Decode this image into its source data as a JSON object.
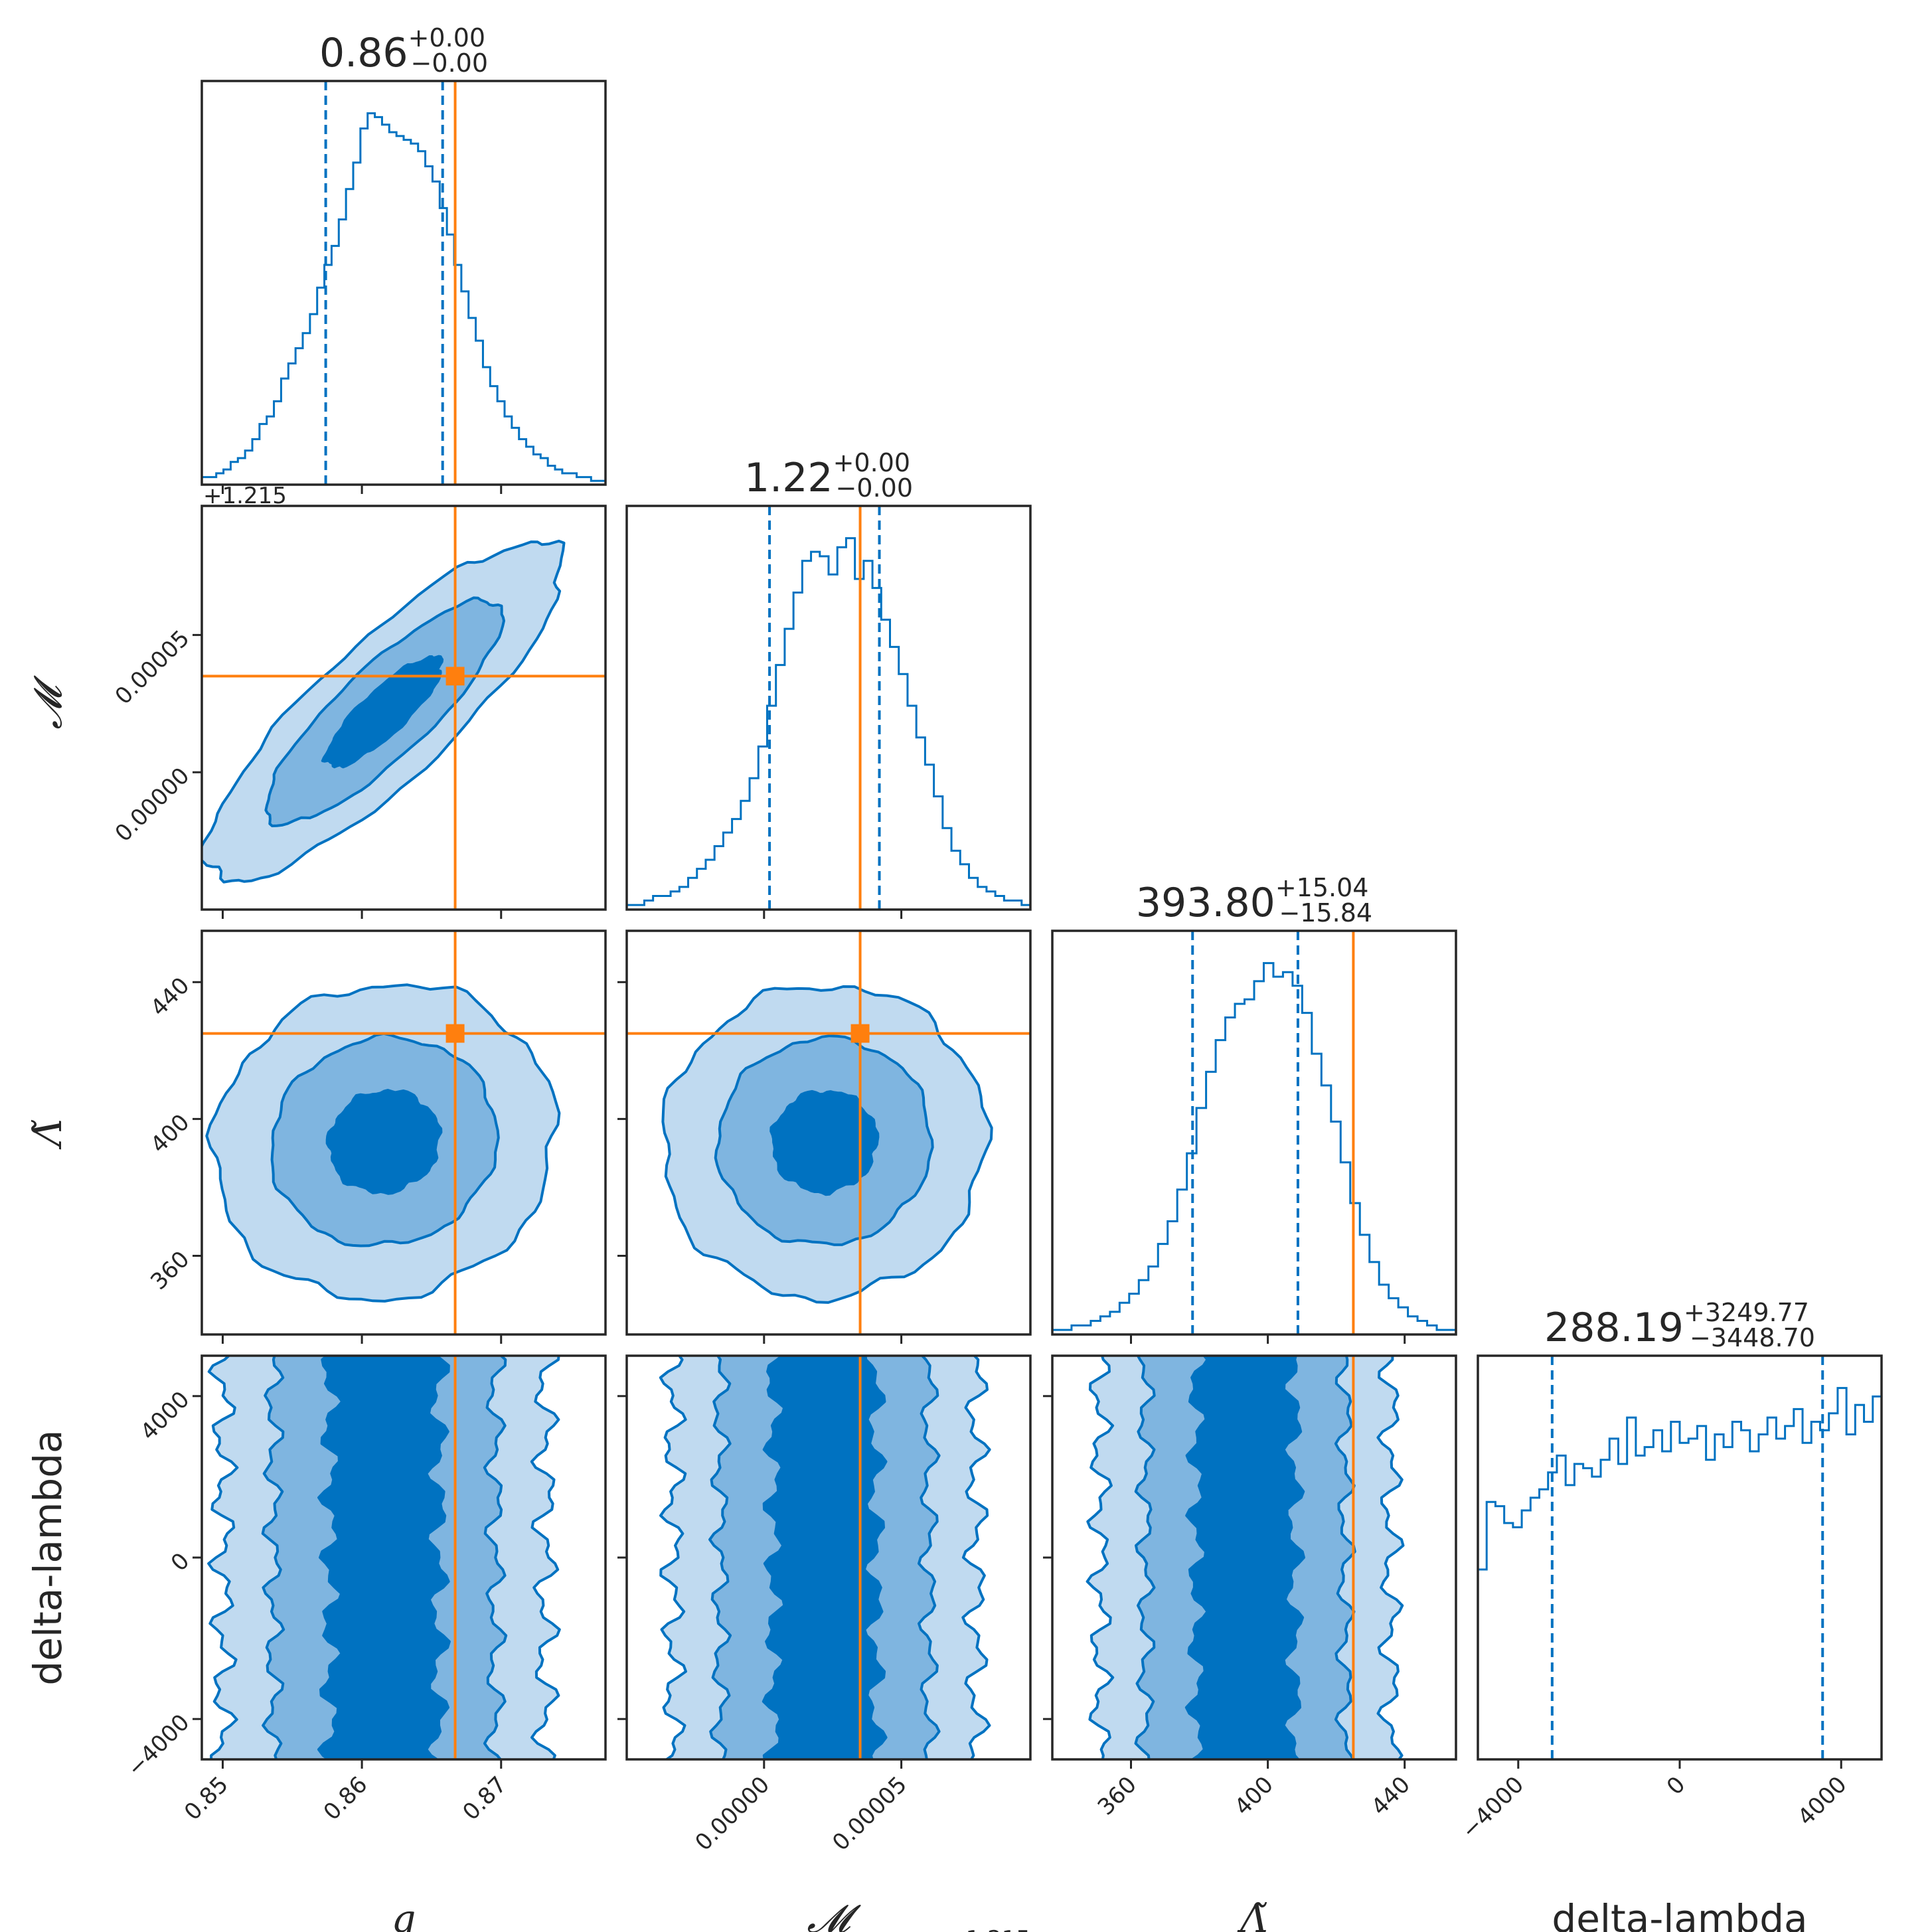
{
  "chart_data": {
    "type": "corner",
    "parameters": [
      {
        "key": "q",
        "label": "q",
        "ticks": [
          "0.85",
          "0.86",
          "0.87"
        ],
        "tick_values": [
          0.85,
          0.86,
          0.87
        ],
        "range": [
          0.8485,
          0.8775
        ],
        "offset": "",
        "title_value": "0.86",
        "title_plus": "+0.00",
        "title_minus": "−0.00",
        "q16": 0.8574,
        "q84": 0.8658,
        "truth": 0.8667
      },
      {
        "key": "mc",
        "label": "𝓜",
        "ticks": [
          "0.00000",
          "0.00005"
        ],
        "tick_values": [
          0.0,
          5e-05
        ],
        "range": [
          -5e-05,
          9.7e-05
        ],
        "offset": "+1.215",
        "title_value": "1.22",
        "title_plus": "+0.00",
        "title_minus": "−0.00",
        "q16": 2e-06,
        "q84": 4.2e-05,
        "truth": 3.5e-05
      },
      {
        "key": "lt",
        "label": "Λ̃",
        "ticks": [
          "360",
          "400",
          "440"
        ],
        "tick_values": [
          360,
          400,
          440
        ],
        "range": [
          337,
          455
        ],
        "offset": "",
        "title_value": "393.80",
        "title_plus": "+15.04",
        "title_minus": "−15.84",
        "q16": 378,
        "q84": 408.8,
        "truth": 425
      },
      {
        "key": "dl",
        "label": "delta-lambda",
        "ticks": [
          "−4000",
          "0",
          "4000"
        ],
        "tick_values": [
          -4000,
          0,
          4000
        ],
        "range": [
          -5000,
          5000
        ],
        "offset": "",
        "title_value": "288.19",
        "title_plus": "+3249.77",
        "title_minus": "−3448.70",
        "q16": -3160,
        "q84": 3540,
        "truth": null
      }
    ],
    "histograms": [
      [
        2,
        2,
        3,
        4,
        6,
        7,
        9,
        12,
        16,
        18,
        22,
        28,
        32,
        36,
        40,
        45,
        52,
        58,
        63,
        70,
        78,
        85,
        94,
        98,
        97,
        95,
        93,
        92,
        91,
        90,
        88,
        84,
        80,
        73,
        66,
        58,
        51,
        44,
        38,
        31,
        26,
        22,
        18,
        15,
        12,
        10,
        8,
        7,
        5,
        4,
        3,
        3,
        2,
        2,
        1,
        1
      ],
      [
        1,
        1,
        2,
        3,
        3,
        4,
        5,
        7,
        9,
        11,
        14,
        17,
        20,
        24,
        29,
        36,
        45,
        54,
        62,
        70,
        77,
        79,
        78,
        74,
        80,
        82,
        73,
        77,
        71,
        64,
        58,
        52,
        45,
        38,
        32,
        25,
        18,
        13,
        10,
        7,
        5,
        4,
        3,
        2,
        2,
        1
      ],
      [
        1,
        1,
        2,
        2,
        3,
        4,
        5,
        7,
        9,
        12,
        15,
        20,
        25,
        32,
        40,
        50,
        58,
        65,
        70,
        73,
        74,
        78,
        82,
        79,
        80,
        77,
        71,
        62,
        55,
        47,
        38,
        29,
        22,
        16,
        11,
        8,
        6,
        4,
        3,
        2,
        1,
        1
      ],
      [
        45,
        61,
        60,
        56,
        55,
        59,
        62,
        64,
        68,
        72,
        65,
        70,
        69,
        67,
        71,
        76,
        70,
        81,
        72,
        74,
        78,
        73,
        80,
        75,
        76,
        79,
        71,
        77,
        74,
        80,
        78,
        73,
        77,
        81,
        76,
        79,
        83,
        75,
        80,
        78,
        82,
        88,
        77,
        84,
        80,
        86
      ]
    ],
    "levels": [
      "39%",
      "86%",
      "99%"
    ],
    "colors": {
      "contour": "#0072c1",
      "fill_inner": "#0072c1",
      "fill_mid": "#7fb5e0",
      "fill_outer": "#c0daf0",
      "truth": "#ff7f0e",
      "axes": "#262626"
    }
  }
}
